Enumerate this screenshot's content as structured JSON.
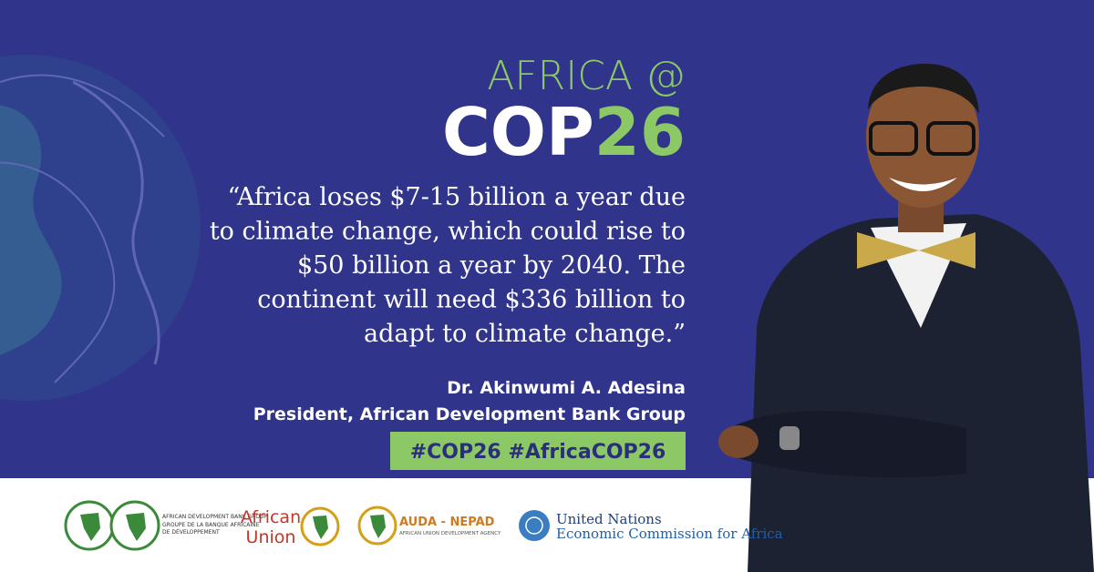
{
  "header": {
    "line1": "AFRICA @",
    "cop": "COP",
    "number": "26"
  },
  "quote": {
    "lines": [
      "“Africa loses $7-15 billion a year due",
      "to climate change, which could rise to",
      "$50 billion a year by 2040. The",
      "continent will need $336 billion to",
      "adapt to climate change.”"
    ]
  },
  "author": {
    "name": "Dr. Akinwumi A. Adesina",
    "title": "President, African Development Bank Group"
  },
  "hashtags": "#COP26 #AfricaCOP26",
  "logos": {
    "afdb": {
      "line1": "AFRICAN DEVELOPMENT BANK GROUP",
      "line2": "GROUPE DE LA BANQUE AFRICAINE",
      "line3": "DE DÉVELOPPEMENT"
    },
    "au": {
      "line1": "African",
      "line2": "Union"
    },
    "auda": {
      "name": "AUDA - NEPAD",
      "sub": "AFRICAN UNION DEVELOPMENT AGENCY"
    },
    "uneca": {
      "line1": "United Nations",
      "line2": "Economic Commission for Africa"
    }
  }
}
